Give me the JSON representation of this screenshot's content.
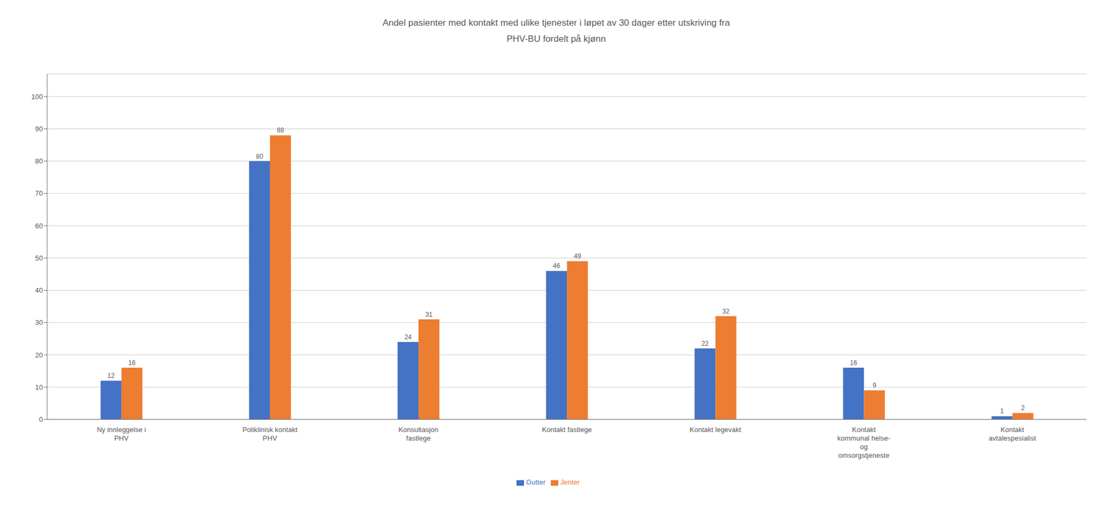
{
  "chart_data": {
    "type": "bar",
    "title": "Andel pasienter med kontakt med ulike tjenester i løpet av 30 dager etter utskriving fra\nPHV-BU fordelt på kjønn",
    "categories": [
      "Ny innleggelse i\nPHV",
      "Poliklinisk kontakt\nPHV",
      "Konsultasjon\nfastlege",
      "Kontakt fastlege",
      "Kontakt legevakt",
      "Kontakt\nkommunal helse-\nog\nomsorgstjeneste",
      "Kontakt\navtalespesialist"
    ],
    "series": [
      {
        "name": "Gutter",
        "color": "#4472C4",
        "values": [
          12,
          80,
          24,
          46,
          22,
          16,
          1
        ]
      },
      {
        "name": "Jenter",
        "color": "#ED7D31",
        "values": [
          16,
          88,
          31,
          49,
          32,
          9,
          2
        ]
      }
    ],
    "ylim": [
      0,
      107
    ],
    "yticks": [
      0,
      10,
      20,
      30,
      40,
      50,
      60,
      70,
      80,
      90,
      100
    ],
    "grid": true,
    "legend": "bottom",
    "data_labels": true
  }
}
